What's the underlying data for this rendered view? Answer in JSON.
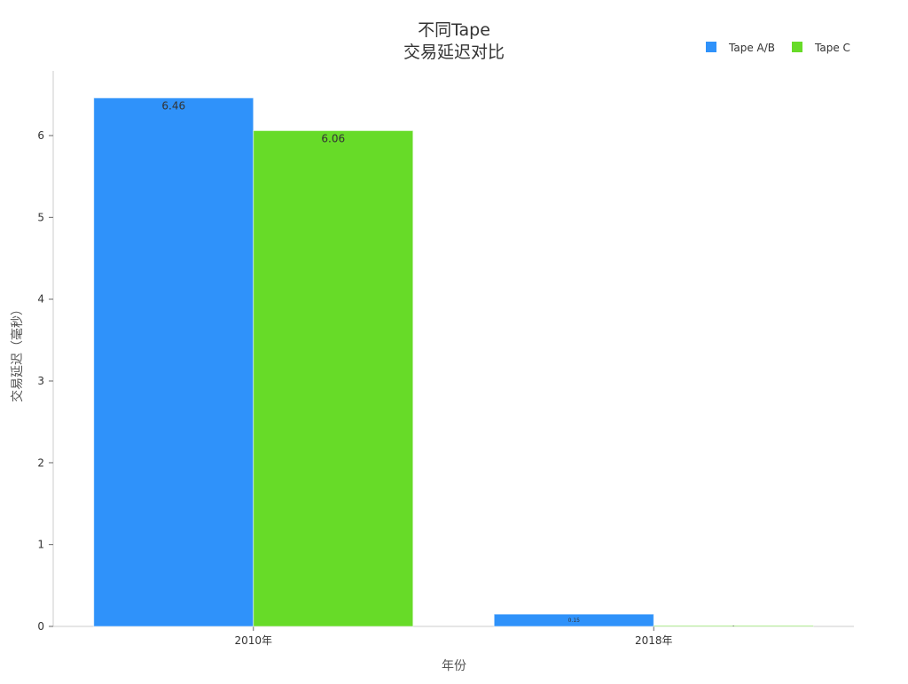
{
  "chart_data": {
    "type": "bar",
    "title": [
      "不同Tape",
      "交易延迟对比"
    ],
    "xlabel": "年份",
    "ylabel": "交易延迟（毫秒）",
    "categories": [
      "2010年",
      "2018年"
    ],
    "series": [
      {
        "name": "Tape A/B",
        "values": [
          6.46,
          0.15
        ],
        "labels": [
          "6.46",
          "0.15"
        ],
        "color": "#2f92fa"
      },
      {
        "name": "Tape C",
        "values": [
          6.06,
          0.01
        ],
        "labels": [
          "6.06",
          "-"
        ],
        "color": "#67db28"
      }
    ],
    "ylim": [
      0,
      6.8
    ],
    "yticks": [
      "0",
      "1",
      "2",
      "3",
      "4",
      "5",
      "6"
    ],
    "grid": false,
    "legend": "top-right"
  }
}
